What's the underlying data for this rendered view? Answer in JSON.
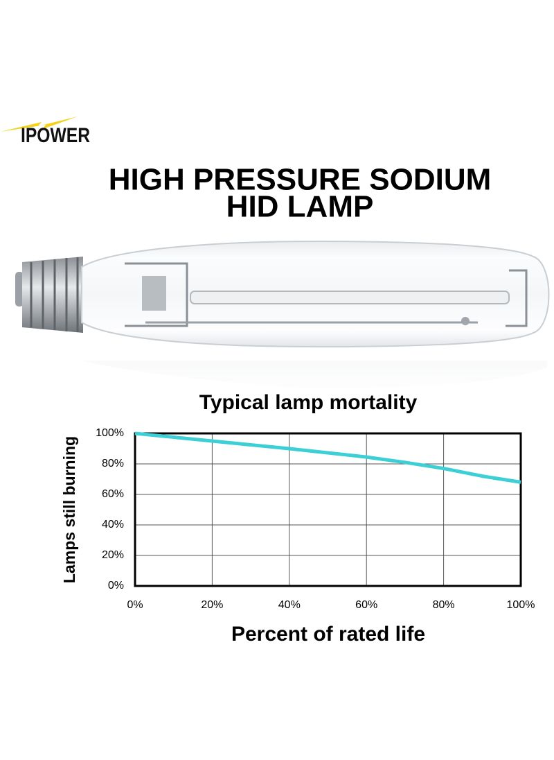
{
  "brand": "IPOWER",
  "headline": {
    "lines": [
      "HIGH PRESSURE SODIUM",
      "HID LAMP"
    ]
  },
  "chart_data": {
    "type": "line",
    "title": "Typical lamp mortality",
    "x_label": "Percent of rated life",
    "y_label": "Lamps still burning",
    "x": [
      0,
      20,
      40,
      60,
      70,
      80,
      90,
      100
    ],
    "series": [
      {
        "color": "#3ccfd6",
        "values": [
          100,
          95,
          90,
          84.5,
          81,
          77,
          72,
          68
        ]
      }
    ],
    "xlim": [
      0,
      100
    ],
    "ylim": [
      0,
      100
    ],
    "xticks": [
      {
        "value": 0,
        "label": "0%"
      },
      {
        "value": 20,
        "label": "20%"
      },
      {
        "value": 40,
        "label": "40%"
      },
      {
        "value": 60,
        "label": "60%"
      },
      {
        "value": 80,
        "label": "80%"
      },
      {
        "value": 100,
        "label": "100%"
      }
    ],
    "yticks": [
      {
        "value": 0,
        "label": "0%"
      },
      {
        "value": 20,
        "label": "20%"
      },
      {
        "value": 40,
        "label": "40%"
      },
      {
        "value": 60,
        "label": "60%"
      },
      {
        "value": 80,
        "label": "80%"
      },
      {
        "value": 100,
        "label": "100%"
      }
    ],
    "grid": true
  }
}
